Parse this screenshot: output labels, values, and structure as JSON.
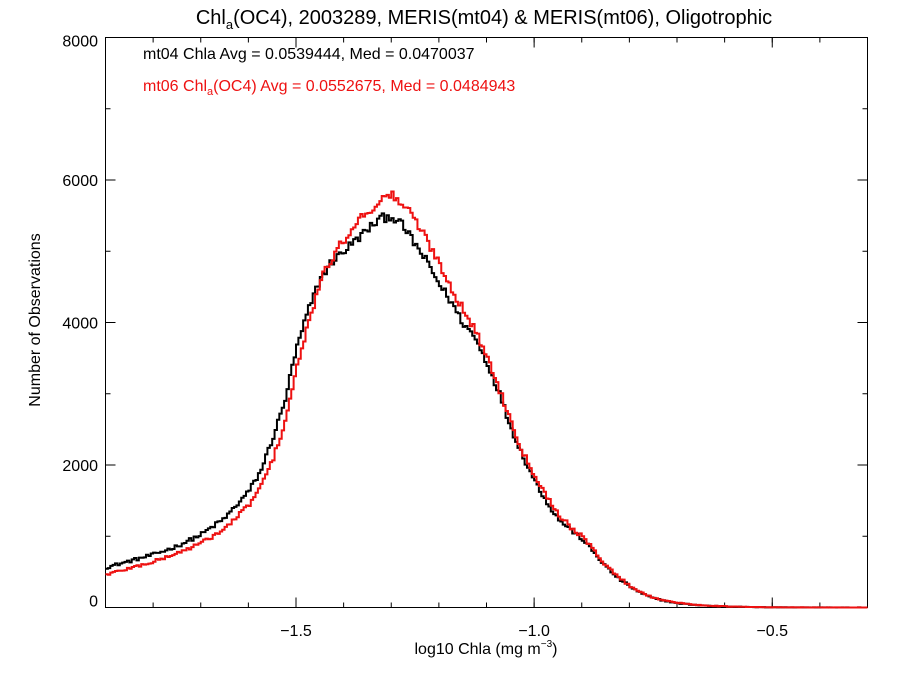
{
  "chart_data": {
    "type": "line",
    "title": {
      "prefix": "Chl",
      "subscript": "a",
      "suffix": "(OC4), 2003289, MERIS(mt04) & MERIS(mt06), Oligotrophic"
    },
    "xlabel": {
      "main": "log10 Chla (mg m",
      "superscript": "−3",
      "close": ")"
    },
    "ylabel": "Number of Observations",
    "xlim": [
      -1.9,
      -0.3
    ],
    "ylim": [
      0,
      8000
    ],
    "x_ticks": [
      {
        "value": -1.5,
        "label": "−1.5"
      },
      {
        "value": -1.0,
        "label": "−1.0"
      },
      {
        "value": -0.5,
        "label": "−0.5"
      }
    ],
    "y_ticks": [
      {
        "value": 0,
        "label": "0"
      },
      {
        "value": 2000,
        "label": "2000"
      },
      {
        "value": 4000,
        "label": "4000"
      },
      {
        "value": 6000,
        "label": "6000"
      },
      {
        "value": 8000,
        "label": "8000"
      }
    ],
    "x_minor_step": 0.1,
    "y_minor_step": 1000,
    "grid": false,
    "bin_width": 0.005,
    "series": [
      {
        "key": "mt04",
        "color": "#000000",
        "annotation": {
          "text": "mt04 Chla Avg = 0.0539444, Med = 0.0470037"
        },
        "points": [
          [
            -1.9,
            560
          ],
          [
            -1.85,
            650
          ],
          [
            -1.8,
            740
          ],
          [
            -1.75,
            860
          ],
          [
            -1.7,
            1020
          ],
          [
            -1.65,
            1250
          ],
          [
            -1.6,
            1620
          ],
          [
            -1.575,
            1900
          ],
          [
            -1.55,
            2350
          ],
          [
            -1.525,
            2850
          ],
          [
            -1.5,
            3600
          ],
          [
            -1.475,
            4150
          ],
          [
            -1.45,
            4600
          ],
          [
            -1.425,
            4850
          ],
          [
            -1.4,
            5000
          ],
          [
            -1.375,
            5150
          ],
          [
            -1.35,
            5300
          ],
          [
            -1.325,
            5450
          ],
          [
            -1.3,
            5500
          ],
          [
            -1.275,
            5350
          ],
          [
            -1.25,
            5100
          ],
          [
            -1.225,
            4850
          ],
          [
            -1.2,
            4550
          ],
          [
            -1.175,
            4300
          ],
          [
            -1.15,
            4000
          ],
          [
            -1.125,
            3800
          ],
          [
            -1.1,
            3450
          ],
          [
            -1.075,
            3050
          ],
          [
            -1.05,
            2550
          ],
          [
            -1.025,
            2150
          ],
          [
            -1.0,
            1800
          ],
          [
            -0.975,
            1500
          ],
          [
            -0.95,
            1250
          ],
          [
            -0.925,
            1100
          ],
          [
            -0.9,
            970
          ],
          [
            -0.875,
            780
          ],
          [
            -0.85,
            580
          ],
          [
            -0.825,
            420
          ],
          [
            -0.8,
            300
          ],
          [
            -0.775,
            200
          ],
          [
            -0.75,
            130
          ],
          [
            -0.7,
            60
          ],
          [
            -0.65,
            30
          ],
          [
            -0.6,
            15
          ],
          [
            -0.55,
            6
          ],
          [
            -0.5,
            3
          ],
          [
            -0.4,
            1
          ],
          [
            -0.3,
            0
          ]
        ]
      },
      {
        "key": "mt06",
        "color": "#ee1111",
        "annotation": {
          "prefix": "mt06 Chl",
          "subscript": "a",
          "suffix": "(OC4) Avg = 0.0552675, Med = 0.0484943"
        },
        "points": [
          [
            -1.9,
            460
          ],
          [
            -1.85,
            550
          ],
          [
            -1.8,
            640
          ],
          [
            -1.75,
            760
          ],
          [
            -1.7,
            900
          ],
          [
            -1.65,
            1100
          ],
          [
            -1.6,
            1430
          ],
          [
            -1.575,
            1680
          ],
          [
            -1.55,
            2050
          ],
          [
            -1.525,
            2550
          ],
          [
            -1.5,
            3300
          ],
          [
            -1.475,
            3950
          ],
          [
            -1.45,
            4550
          ],
          [
            -1.425,
            4900
          ],
          [
            -1.4,
            5150
          ],
          [
            -1.375,
            5400
          ],
          [
            -1.35,
            5550
          ],
          [
            -1.325,
            5700
          ],
          [
            -1.3,
            5800
          ],
          [
            -1.275,
            5650
          ],
          [
            -1.25,
            5450
          ],
          [
            -1.225,
            5150
          ],
          [
            -1.2,
            4850
          ],
          [
            -1.175,
            4500
          ],
          [
            -1.15,
            4200
          ],
          [
            -1.125,
            3900
          ],
          [
            -1.1,
            3550
          ],
          [
            -1.075,
            3100
          ],
          [
            -1.05,
            2650
          ],
          [
            -1.025,
            2200
          ],
          [
            -1.0,
            1880
          ],
          [
            -0.975,
            1580
          ],
          [
            -0.95,
            1320
          ],
          [
            -0.925,
            1140
          ],
          [
            -0.9,
            1000
          ],
          [
            -0.875,
            810
          ],
          [
            -0.85,
            600
          ],
          [
            -0.825,
            440
          ],
          [
            -0.8,
            310
          ],
          [
            -0.775,
            210
          ],
          [
            -0.75,
            140
          ],
          [
            -0.7,
            65
          ],
          [
            -0.65,
            32
          ],
          [
            -0.6,
            16
          ],
          [
            -0.55,
            7
          ],
          [
            -0.5,
            3
          ],
          [
            -0.4,
            1
          ],
          [
            -0.3,
            0
          ]
        ]
      }
    ]
  }
}
